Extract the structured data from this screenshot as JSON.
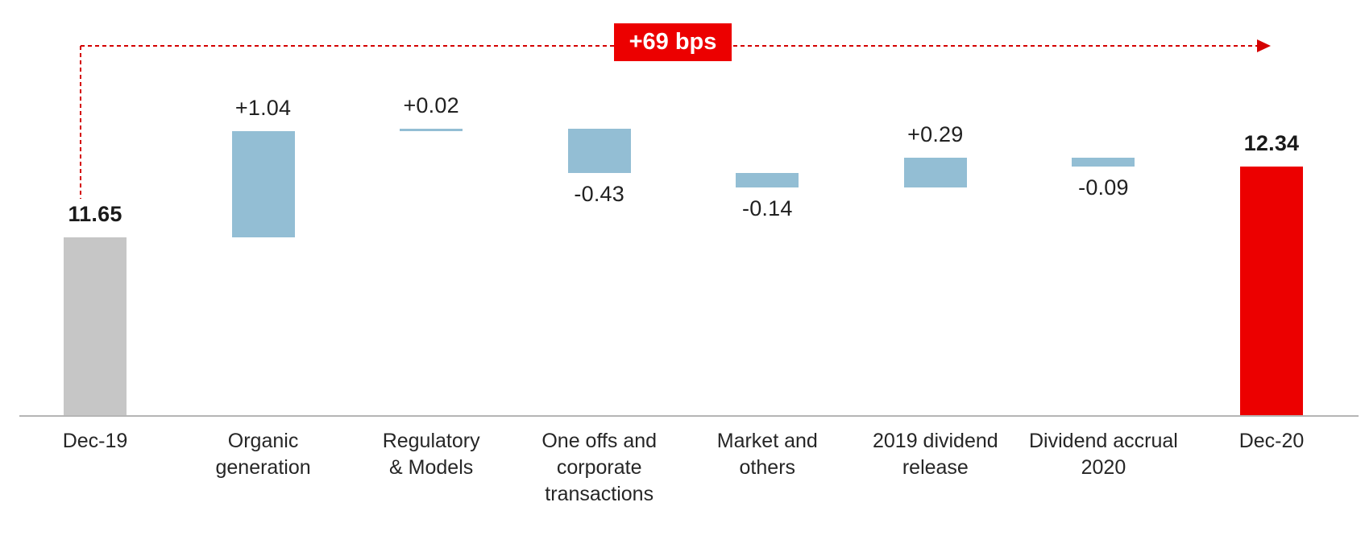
{
  "page": {
    "background": "#ffffff"
  },
  "colors": {
    "start_bar": "#c6c6c6",
    "delta_bar": "#93bed4",
    "end_bar": "#ec0000",
    "annotation_bg": "#ec0000",
    "annotation_text": "#ffffff",
    "arrow": "#d40000",
    "axis": "#b5b5b5",
    "text": "#212121"
  },
  "chart_data": {
    "type": "bar",
    "subtype": "waterfall",
    "title": "",
    "xlabel": "",
    "ylabel": "",
    "grid": false,
    "legend": "none",
    "ylim": [
      9.92,
      13.34
    ],
    "annotation": {
      "label": "+69 bps",
      "from": "Dec-19",
      "to": "Dec-20"
    },
    "categories": [
      "Dec-19",
      "Organic generation",
      "Regulatory & Models",
      "One offs and corporate transactions",
      "Market and others",
      "2019 dividend release",
      "Dividend accrual 2020",
      "Dec-20"
    ],
    "bars": [
      {
        "slug": "dec-19",
        "kind": "total",
        "value": 11.65,
        "display": "11.65",
        "color": "#c6c6c6",
        "value_label_pos": "above",
        "value_label_bold": true,
        "label_lines": [
          "Dec-19"
        ]
      },
      {
        "slug": "organic-generation",
        "kind": "delta",
        "value": 1.04,
        "display": "+1.04",
        "color": "#93bed4",
        "value_label_pos": "above",
        "value_label_bold": false,
        "label_lines": [
          "Organic",
          "generation"
        ]
      },
      {
        "slug": "regulatory-models",
        "kind": "delta",
        "value": 0.02,
        "display": "+0.02",
        "color": "#93bed4",
        "value_label_pos": "above",
        "value_label_bold": false,
        "label_lines": [
          "Regulatory",
          "& Models"
        ]
      },
      {
        "slug": "one-offs-corporate-transactions",
        "kind": "delta",
        "value": -0.43,
        "display": "-0.43",
        "color": "#93bed4",
        "value_label_pos": "below",
        "value_label_bold": false,
        "label_lines": [
          "One offs and",
          "corporate",
          "transactions"
        ]
      },
      {
        "slug": "market-and-others",
        "kind": "delta",
        "value": -0.14,
        "display": "-0.14",
        "color": "#93bed4",
        "value_label_pos": "below",
        "value_label_bold": false,
        "label_lines": [
          "Market and",
          "others"
        ]
      },
      {
        "slug": "2019-dividend-release",
        "kind": "delta",
        "value": 0.29,
        "display": "+0.29",
        "color": "#93bed4",
        "value_label_pos": "above",
        "value_label_bold": false,
        "label_lines": [
          "2019 dividend",
          "release"
        ]
      },
      {
        "slug": "dividend-accrual-2020",
        "kind": "delta",
        "value": -0.09,
        "display": "-0.09",
        "color": "#93bed4",
        "value_label_pos": "below",
        "value_label_bold": false,
        "label_lines": [
          "Dividend accrual",
          "2020"
        ]
      },
      {
        "slug": "dec-20",
        "kind": "total",
        "value": 12.34,
        "display": "12.34",
        "color": "#ec0000",
        "value_label_pos": "above",
        "value_label_bold": true,
        "label_lines": [
          "Dec-20"
        ]
      }
    ]
  }
}
